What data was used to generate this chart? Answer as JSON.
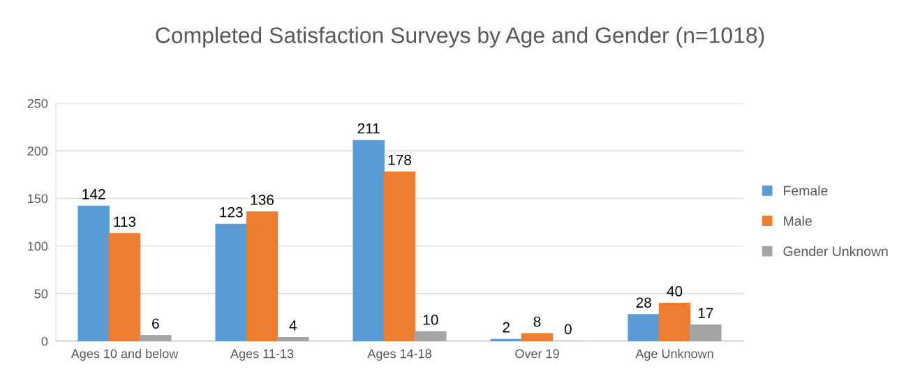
{
  "chart_data": {
    "type": "bar",
    "title": "Completed Satisfaction Surveys by Age and Gender (n=1018)",
    "categories": [
      "Ages 10 and below",
      "Ages 11-13",
      "Ages 14-18",
      "Over 19",
      "Age Unknown"
    ],
    "series": [
      {
        "name": "Female",
        "color": "#5b9bd5",
        "values": [
          142,
          123,
          211,
          2,
          28
        ]
      },
      {
        "name": "Male",
        "color": "#ed7d31",
        "values": [
          113,
          136,
          178,
          8,
          40
        ]
      },
      {
        "name": "Gender Unknown",
        "color": "#a5a5a5",
        "values": [
          6,
          4,
          10,
          0,
          17
        ]
      }
    ],
    "ylim": [
      0,
      250
    ],
    "yticks": [
      0,
      50,
      100,
      150,
      200,
      250
    ],
    "grid": "y",
    "legend": "right",
    "data_labels": true
  }
}
